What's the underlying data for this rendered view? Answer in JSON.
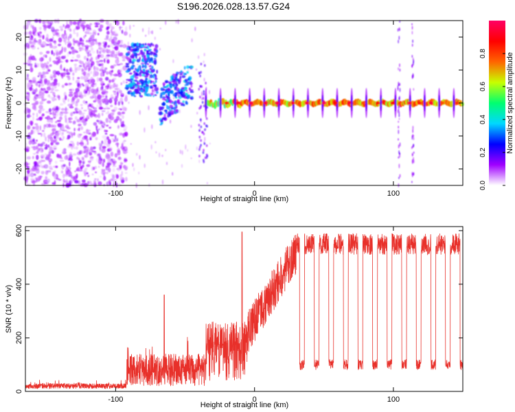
{
  "title": "S196.2026.028.13.57.G24",
  "chart_data": [
    {
      "type": "heatmap",
      "name": "spectrogram",
      "xlabel": "Height of straight line (km)",
      "ylabel": "Frequency (Hz)",
      "xlim": [
        -165,
        150
      ],
      "ylim": [
        -25,
        25
      ],
      "xticks": [
        -100,
        0,
        100
      ],
      "yticks": [
        -20,
        -10,
        0,
        10,
        20
      ],
      "colorbar": {
        "label": "Normalized spectral amplitude",
        "range": [
          0,
          1
        ],
        "ticks": [
          "0.0",
          "0.2",
          "0.4",
          "0.6",
          "0.8"
        ],
        "colors": [
          "#ffffff",
          "#a000ff",
          "#0000ff",
          "#00d8ff",
          "#00ff70",
          "#c8ff00",
          "#ff6400",
          "#ff0000",
          "#ff0064"
        ]
      },
      "regions": [
        {
          "label": "noise",
          "x_range": [
            -165,
            -92
          ],
          "f_range": [
            -25,
            25
          ]
        },
        {
          "label": "tone",
          "x_range": [
            -92,
            -70
          ],
          "f_center": 10
        },
        {
          "label": "tone",
          "x_range": [
            -68,
            -45
          ],
          "f_center": -1
        },
        {
          "label": "carrier",
          "x_range": [
            -35,
            150
          ],
          "f_center": 0
        }
      ],
      "spikes_x": [
        104,
        114
      ]
    },
    {
      "type": "line",
      "name": "snr",
      "xlabel": "Height of straight line (km)",
      "ylabel": "SNR (10 * v/v)",
      "xlim": [
        -165,
        150
      ],
      "ylim": [
        0,
        615
      ],
      "xticks": [
        -100,
        0,
        100
      ],
      "yticks": [
        0,
        200,
        400,
        600
      ],
      "color": "#e8302a",
      "series": [
        {
          "name": "SNR",
          "segments": [
            {
              "x": [
                -165,
                -92
              ],
              "level": 20,
              "noise": 10
            },
            {
              "x": [
                -92,
                -35
              ],
              "level": 80,
              "noise": 60,
              "peak": {
                "x": -65,
                "y": 360
              }
            },
            {
              "x": [
                -35,
                -5
              ],
              "level": 180,
              "noise": 80,
              "peak": {
                "x": -9,
                "y": 595
              }
            },
            {
              "x": [
                -5,
                30
              ],
              "level": 400,
              "noise": 80
            },
            {
              "x": [
                30,
                150
              ],
              "level": 550,
              "noise": 40,
              "dips": {
                "start": -20,
                "step": 10.5,
                "level": 100
              }
            }
          ]
        }
      ]
    }
  ]
}
